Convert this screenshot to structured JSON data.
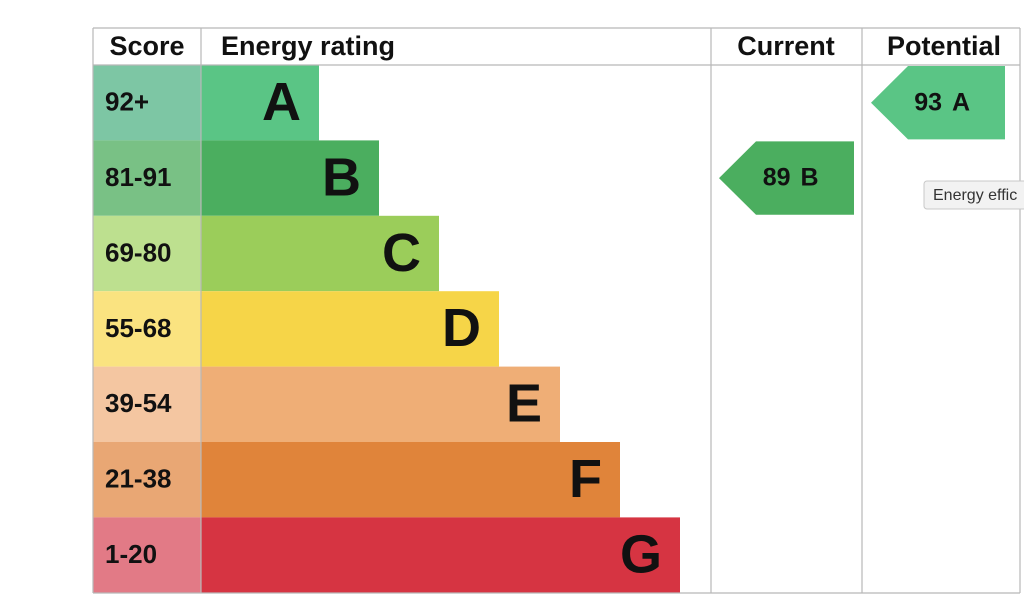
{
  "header": {
    "score": "Score",
    "rating": "Energy rating",
    "current": "Current",
    "potential": "Potential"
  },
  "rows": [
    {
      "score": "92+",
      "rating": "A",
      "color": "#5ac585",
      "score_color": "#7dc6a4"
    },
    {
      "score": "81-91",
      "rating": "B",
      "color": "#4bae5f",
      "score_color": "#79c185"
    },
    {
      "score": "69-80",
      "rating": "C",
      "color": "#9bcd5a",
      "score_color": "#bde08f"
    },
    {
      "score": "55-68",
      "rating": "D",
      "color": "#f6d548",
      "score_color": "#fae380"
    },
    {
      "score": "39-54",
      "rating": "E",
      "color": "#efae76",
      "score_color": "#f4c6a1"
    },
    {
      "score": "21-38",
      "rating": "F",
      "color": "#e0843a",
      "score_color": "#e9a774"
    },
    {
      "score": "1-20",
      "rating": "G",
      "color": "#d63442",
      "score_color": "#e27a86"
    }
  ],
  "current": {
    "score": 89,
    "rating": "B"
  },
  "potential": {
    "score": 93,
    "rating": "A"
  },
  "tooltip": "Energy effic"
}
